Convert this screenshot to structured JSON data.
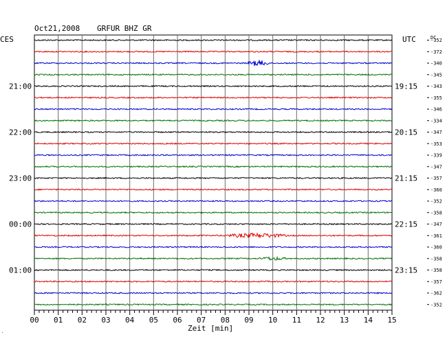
{
  "header": {
    "date": "Oct21,2008",
    "station": "GRFUR BHZ GR",
    "left_tz": "CES",
    "right_tz": "UTC",
    "dc_label": "DC"
  },
  "chart_data": {
    "type": "line",
    "title": "Oct21,2008   GRFUR BHZ GR",
    "xlabel": "Zeit [min]",
    "xlim": [
      0,
      15
    ],
    "x_ticks": [
      "00",
      "01",
      "02",
      "03",
      "04",
      "05",
      "06",
      "07",
      "08",
      "09",
      "10",
      "11",
      "12",
      "13",
      "14",
      "15"
    ],
    "trace_colors": [
      "#000000",
      "#e00000",
      "#0000d0",
      "#007000"
    ],
    "left_time_labels": [
      {
        "trace": 4,
        "label": "21:00"
      },
      {
        "trace": 8,
        "label": "22:00"
      },
      {
        "trace": 12,
        "label": "23:00"
      },
      {
        "trace": 16,
        "label": "00:00"
      },
      {
        "trace": 20,
        "label": "01:00"
      }
    ],
    "right_time_labels": [
      {
        "trace": 4,
        "label": "19:15"
      },
      {
        "trace": 8,
        "label": "20:15"
      },
      {
        "trace": 12,
        "label": "21:15"
      },
      {
        "trace": 16,
        "label": "22:15"
      },
      {
        "trace": 20,
        "label": "23:15"
      }
    ],
    "dc_offsets": [
      "-352",
      "-372",
      "-340",
      "-345",
      "-343",
      "-355",
      "-346",
      "-334",
      "-347",
      "-353",
      "-339",
      "-347",
      "-357",
      "-360",
      "-352",
      "-358",
      "-347",
      "-361",
      "-360",
      "-358",
      "-358",
      "-357",
      "-362",
      "-352"
    ],
    "events": [
      {
        "trace": 2,
        "center_min": 9.4,
        "width_min": 1.0,
        "amplitude": 3.5
      },
      {
        "trace": 17,
        "center_min": 9.3,
        "width_min": 2.8,
        "amplitude": 2.6
      },
      {
        "trace": 19,
        "center_min": 10.0,
        "width_min": 1.2,
        "amplitude": 1.8
      }
    ]
  }
}
